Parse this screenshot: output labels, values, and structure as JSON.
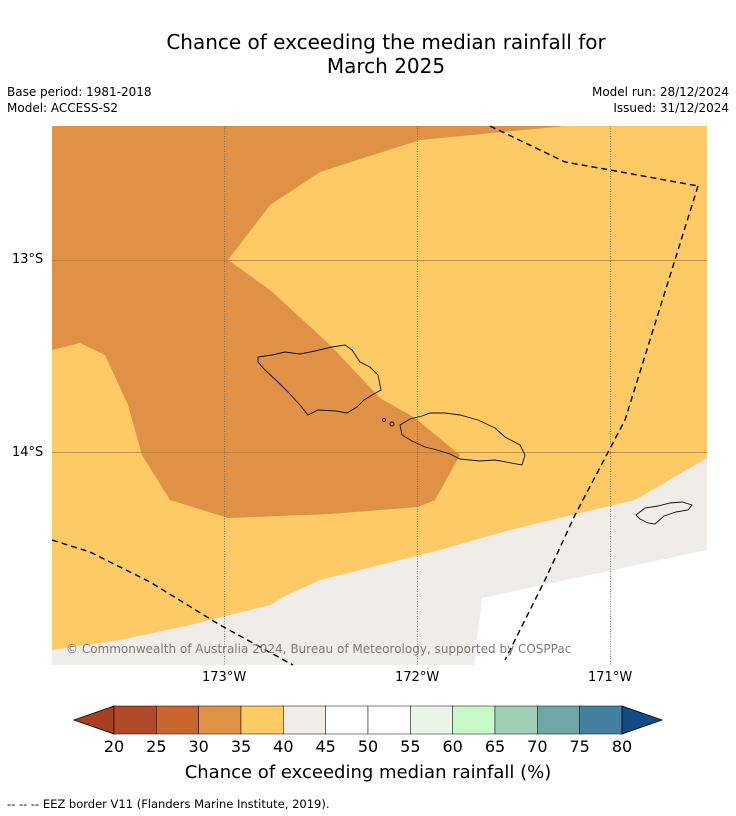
{
  "title": {
    "line1": "Chance of exceeding the median rainfall for",
    "line2": "March 2025"
  },
  "meta": {
    "base_period": "Base period: 1981-2018",
    "model": "Model: ACCESS-S2",
    "model_run": "Model run: 28/12/2024",
    "issued": "Issued: 31/12/2024"
  },
  "axes": {
    "lat_labels": [
      "13°S",
      "14°S"
    ],
    "lon_labels": [
      "173°W",
      "172°W",
      "171°W"
    ]
  },
  "copyright": "© Commonwealth of Australia 2024, Bureau of Meteorology, supported by COSPPac",
  "colorbar": {
    "title": "Chance of exceeding median rainfall (%)",
    "ticks": [
      "20",
      "25",
      "30",
      "35",
      "40",
      "45",
      "50",
      "55",
      "60",
      "65",
      "70",
      "75",
      "80"
    ],
    "colors": [
      "#a8401f",
      "#b04a28",
      "#c9652f",
      "#df9145",
      "#fdca66",
      "#f0ece7",
      "#ffffff",
      "#ffffff",
      "#e9f6e7",
      "#c7f9c6",
      "#9fcfb5",
      "#6fa6a6",
      "#44809f",
      "#114c87"
    ]
  },
  "footnote": "--  --  -- EEZ border V11 (Flanders Marine Institute, 2019)."
}
